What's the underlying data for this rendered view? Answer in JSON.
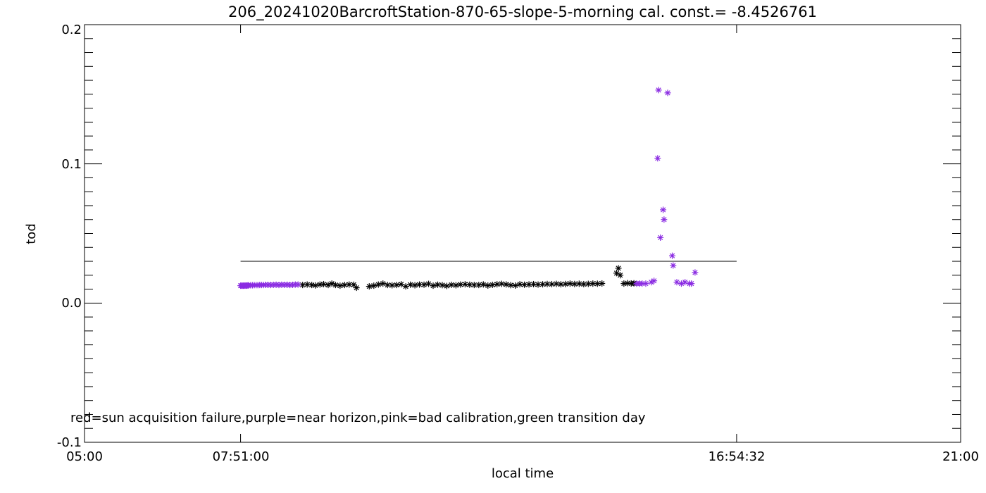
{
  "chart_data": {
    "type": "scatter",
    "title": "206_20241020BarcroftStation-870-65-slope-5-morning cal. const.= -8.4526761",
    "xlabel": "local time",
    "ylabel": "tod",
    "xlim": [
      "05:00",
      "21:00"
    ],
    "ylim": [
      -0.1,
      0.2
    ],
    "x_ticks": [
      "05:00",
      "07:51:00",
      "16:54:32",
      "21:00"
    ],
    "y_ticks": [
      "-0.1",
      "0.0",
      "0.1",
      "0.2"
    ],
    "annotation": "red=sun acquisition failure,purple=near horizon,pink=bad calibration,green transition day",
    "colors": {
      "normal": "#000000",
      "near_horizon": "#8a2be2"
    },
    "reference_line": {
      "y": 0.03,
      "x_start": "07:51:00",
      "x_end": "16:54:32"
    },
    "series": [
      {
        "name": "purple",
        "color": "#8a2be2",
        "points": [
          [
            "07:51:00",
            0.0125
          ],
          [
            "07:52:00",
            0.0125
          ],
          [
            "07:53:00",
            0.0125
          ],
          [
            "07:54:00",
            0.0125
          ],
          [
            "07:55:00",
            0.0125
          ],
          [
            "07:56:00",
            0.0126
          ],
          [
            "07:57:00",
            0.0125
          ],
          [
            "07:58:00",
            0.0126
          ],
          [
            "07:59:00",
            0.0127
          ],
          [
            "08:00:00",
            0.0127
          ],
          [
            "08:02:00",
            0.0128
          ],
          [
            "08:04:00",
            0.0128
          ],
          [
            "08:06:00",
            0.0129
          ],
          [
            "08:08:00",
            0.0129
          ],
          [
            "08:10:00",
            0.0129
          ],
          [
            "08:12:00",
            0.013
          ],
          [
            "08:14:00",
            0.013
          ],
          [
            "08:16:00",
            0.013
          ],
          [
            "08:18:00",
            0.0131
          ],
          [
            "08:21:00",
            0.0131
          ],
          [
            "08:24:00",
            0.013
          ],
          [
            "08:27:00",
            0.0131
          ],
          [
            "08:30:00",
            0.0132
          ],
          [
            "08:33:00",
            0.013
          ],
          [
            "08:36:00",
            0.0132
          ],
          [
            "08:39:00",
            0.0131
          ],
          [
            "08:42:00",
            0.0132
          ],
          [
            "08:45:00",
            0.013
          ],
          [
            "08:48:00",
            0.0131
          ],
          [
            "08:51:00",
            0.0133
          ],
          [
            "08:54:00",
            0.0133
          ],
          [
            "15:05:00",
            0.014
          ],
          [
            "15:08:00",
            0.014
          ],
          [
            "15:11:00",
            0.014
          ],
          [
            "15:15:00",
            0.014
          ],
          [
            "15:21:00",
            0.015
          ],
          [
            "15:24:00",
            0.016
          ],
          [
            "15:28:00",
            0.104
          ],
          [
            "15:29:00",
            0.153
          ],
          [
            "15:31:00",
            0.047
          ],
          [
            "15:34:00",
            0.067
          ],
          [
            "15:35:00",
            0.06
          ],
          [
            "15:39:00",
            0.151
          ],
          [
            "15:44:00",
            0.034
          ],
          [
            "15:45:00",
            0.027
          ],
          [
            "15:49:00",
            0.015
          ],
          [
            "15:54:00",
            0.014
          ],
          [
            "15:58:00",
            0.015
          ],
          [
            "16:03:00",
            0.014
          ],
          [
            "16:05:00",
            0.014
          ],
          [
            "16:09:00",
            0.022
          ]
        ]
      },
      {
        "name": "black",
        "color": "#000000",
        "points": [
          [
            "08:59:00",
            0.013
          ],
          [
            "09:04:00",
            0.0133
          ],
          [
            "09:09:00",
            0.013
          ],
          [
            "09:13:00",
            0.0127
          ],
          [
            "09:18:00",
            0.0133
          ],
          [
            "09:22:00",
            0.0136
          ],
          [
            "09:27:00",
            0.013
          ],
          [
            "09:31:00",
            0.014
          ],
          [
            "09:35:00",
            0.013
          ],
          [
            "09:40:00",
            0.0125
          ],
          [
            "09:45:00",
            0.013
          ],
          [
            "09:50:00",
            0.0133
          ],
          [
            "09:55:00",
            0.0132
          ],
          [
            "09:58:00",
            0.011
          ],
          [
            "10:12:00",
            0.012
          ],
          [
            "10:17:00",
            0.0125
          ],
          [
            "10:22:00",
            0.0133
          ],
          [
            "10:27:00",
            0.014
          ],
          [
            "10:32:00",
            0.013
          ],
          [
            "10:37:00",
            0.0128
          ],
          [
            "10:42:00",
            0.013
          ],
          [
            "10:47:00",
            0.0135
          ],
          [
            "10:52:00",
            0.012
          ],
          [
            "10:57:00",
            0.0132
          ],
          [
            "11:02:00",
            0.0128
          ],
          [
            "11:07:00",
            0.0133
          ],
          [
            "11:12:00",
            0.0132
          ],
          [
            "11:17:00",
            0.0138
          ],
          [
            "11:22:00",
            0.0125
          ],
          [
            "11:27:00",
            0.0132
          ],
          [
            "11:32:00",
            0.0129
          ],
          [
            "11:37:00",
            0.0123
          ],
          [
            "11:42:00",
            0.0131
          ],
          [
            "11:47:00",
            0.0128
          ],
          [
            "11:52:00",
            0.0133
          ],
          [
            "11:57:00",
            0.0135
          ],
          [
            "12:02:00",
            0.0132
          ],
          [
            "12:07:00",
            0.013
          ],
          [
            "12:12:00",
            0.013
          ],
          [
            "12:17:00",
            0.0134
          ],
          [
            "12:22:00",
            0.0126
          ],
          [
            "12:27:00",
            0.0131
          ],
          [
            "12:32:00",
            0.0135
          ],
          [
            "12:37:00",
            0.0138
          ],
          [
            "12:42:00",
            0.0134
          ],
          [
            "12:47:00",
            0.0129
          ],
          [
            "12:52:00",
            0.0126
          ],
          [
            "12:57:00",
            0.0135
          ],
          [
            "13:02:00",
            0.0132
          ],
          [
            "13:07:00",
            0.0134
          ],
          [
            "13:12:00",
            0.0136
          ],
          [
            "13:17:00",
            0.0133
          ],
          [
            "13:22:00",
            0.0135
          ],
          [
            "13:27:00",
            0.0137
          ],
          [
            "13:32:00",
            0.0136
          ],
          [
            "13:37:00",
            0.0138
          ],
          [
            "13:42:00",
            0.0135
          ],
          [
            "13:47:00",
            0.0137
          ],
          [
            "13:52:00",
            0.014
          ],
          [
            "13:57:00",
            0.0137
          ],
          [
            "14:02:00",
            0.0139
          ],
          [
            "14:07:00",
            0.0136
          ],
          [
            "14:12:00",
            0.0138
          ],
          [
            "14:17:00",
            0.014
          ],
          [
            "14:22:00",
            0.0139
          ],
          [
            "14:27:00",
            0.0141
          ],
          [
            "14:43:00",
            0.0215
          ],
          [
            "14:45:00",
            0.025
          ],
          [
            "14:47:00",
            0.02
          ],
          [
            "14:51:00",
            0.014
          ],
          [
            "14:55:00",
            0.0143
          ],
          [
            "14:59:00",
            0.0141
          ],
          [
            "15:02:00",
            0.0142
          ]
        ]
      }
    ]
  }
}
